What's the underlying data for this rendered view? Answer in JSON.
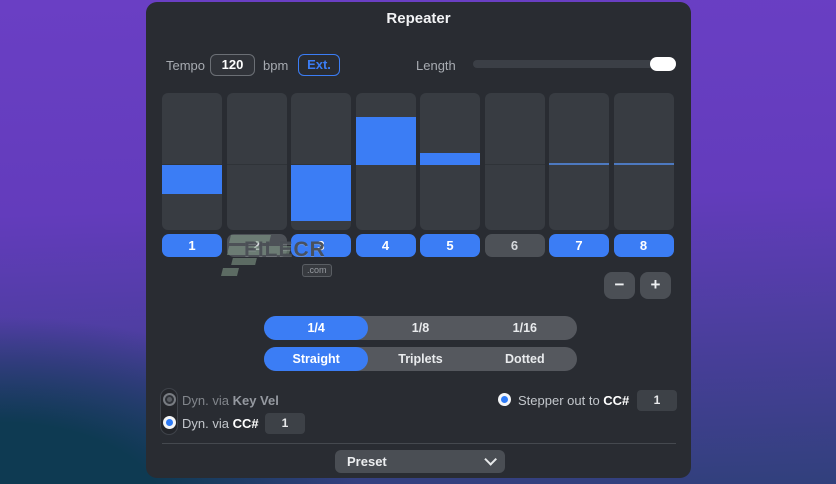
{
  "app": {
    "title": "Repeater"
  },
  "colors": {
    "accent": "#3b7df5",
    "panel": "#292c32",
    "step_bg": "#383c42",
    "inactive": "#4d5157",
    "zero_line": "#4d79c0"
  },
  "tempo": {
    "label": "Tempo",
    "value": "120",
    "unit": "bpm",
    "ext_label": "Ext."
  },
  "length": {
    "label": "Length",
    "value_percent": 100
  },
  "steps": {
    "items": [
      {
        "n": "1",
        "on": true,
        "value": -0.45
      },
      {
        "n": "2",
        "on": false,
        "value": 0
      },
      {
        "n": "3",
        "on": true,
        "value": -0.86
      },
      {
        "n": "4",
        "on": true,
        "value": 0.74
      },
      {
        "n": "5",
        "on": true,
        "value": 0.18
      },
      {
        "n": "6",
        "on": false,
        "value": 0
      },
      {
        "n": "7",
        "on": true,
        "value": 0
      },
      {
        "n": "8",
        "on": true,
        "value": 0
      }
    ]
  },
  "stepper_controls": {
    "minus_label": "−",
    "plus_label": "+"
  },
  "rate": {
    "options": [
      "1/4",
      "1/8",
      "1/16"
    ],
    "selected": "1/4"
  },
  "feel": {
    "options": [
      "Straight",
      "Triplets",
      "Dotted"
    ],
    "selected": "Straight"
  },
  "dynamics": {
    "key_vel": {
      "prefix": "Dyn. via ",
      "bold": "Key Vel",
      "selected": false
    },
    "cc": {
      "prefix": "Dyn. via ",
      "bold": "CC#",
      "value": "1",
      "selected": true
    }
  },
  "stepper_out": {
    "prefix": "Stepper out to ",
    "bold": "CC#",
    "value": "1",
    "selected": true
  },
  "preset": {
    "label": "Preset"
  },
  "watermark": {
    "text": "FILECR",
    "suffix": ".com"
  }
}
